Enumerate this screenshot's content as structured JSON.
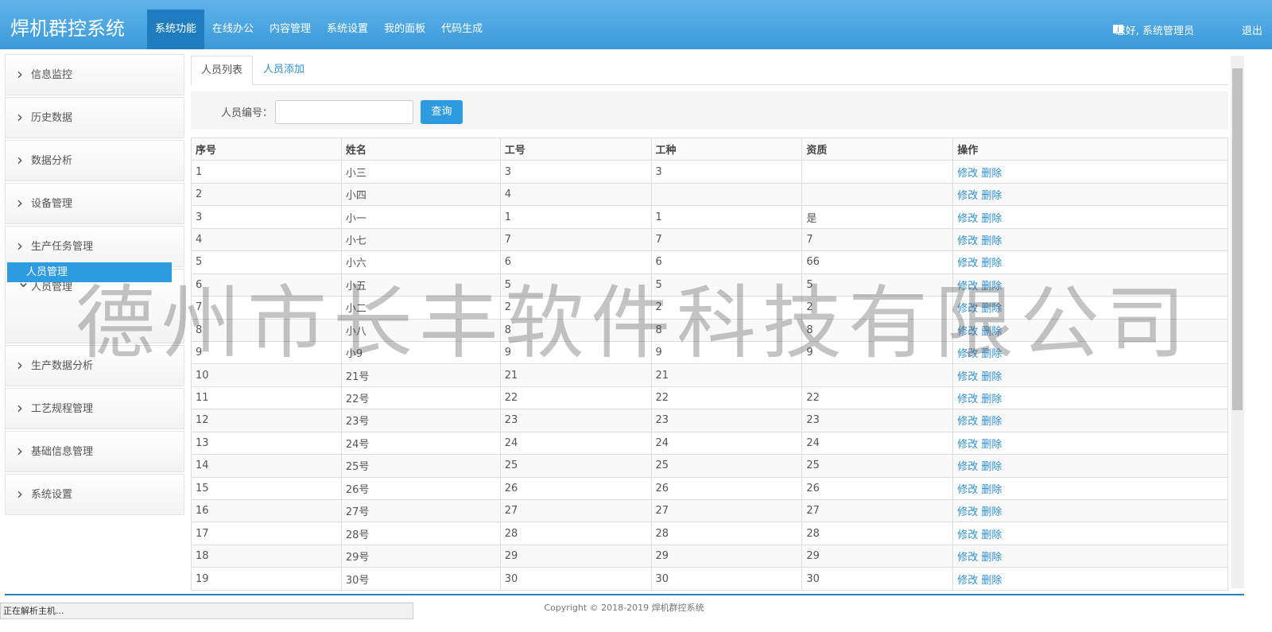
{
  "header": {
    "brand": "焊机群控系统",
    "nav": [
      "系统功能",
      "在线办公",
      "内容管理",
      "系统设置",
      "我的面板",
      "代码生成"
    ],
    "user": "您好, 系统管理员",
    "logout": "退出"
  },
  "sidebar": {
    "items": [
      "信息监控",
      "历史数据",
      "数据分析",
      "设备管理",
      "生产任务管理",
      "人员管理",
      "生产数据分析",
      "工艺规程管理",
      "基础信息管理",
      "系统设置"
    ],
    "submenu": "人员管理"
  },
  "tabs": [
    "人员列表",
    "人员添加"
  ],
  "search": {
    "label": "人员编号：",
    "button": "查询"
  },
  "table": {
    "columns": [
      "序号",
      "姓名",
      "工号",
      "工种",
      "资质",
      "操作"
    ],
    "actions": [
      "修改",
      "删除"
    ],
    "rows": [
      [
        "1",
        "小三",
        "3",
        "3",
        null
      ],
      [
        "2",
        "小四",
        "4",
        null,
        null
      ],
      [
        "3",
        "小一",
        "1",
        "1",
        "是"
      ],
      [
        "4",
        "小七",
        "7",
        "7",
        "7"
      ],
      [
        "5",
        "小六",
        "6",
        "6",
        "66"
      ],
      [
        "6",
        "小五",
        "5",
        "5",
        "5"
      ],
      [
        "7",
        "小二",
        "2",
        "2",
        "2"
      ],
      [
        "8",
        "小八",
        "8",
        "8",
        "8"
      ],
      [
        "9",
        "小9",
        "9",
        "9",
        "9"
      ],
      [
        "10",
        "21号",
        "21",
        "21",
        null
      ],
      [
        "11",
        "22号",
        "22",
        "22",
        "22"
      ],
      [
        "12",
        "23号",
        "23",
        "23",
        "23"
      ],
      [
        "13",
        "24号",
        "24",
        "24",
        "24"
      ],
      [
        "14",
        "25号",
        "25",
        "25",
        "25"
      ],
      [
        "15",
        "26号",
        "26",
        "26",
        "26"
      ],
      [
        "16",
        "27号",
        "27",
        "27",
        "27"
      ],
      [
        "17",
        "28号",
        "28",
        "28",
        "28"
      ],
      [
        "18",
        "29号",
        "29",
        "29",
        "29"
      ],
      [
        "19",
        "30号",
        "30",
        "30",
        "30"
      ]
    ]
  },
  "watermark": "德州市长丰软件科技有限公司",
  "footer": "Copyright © 2018-2019 焊机群控系统",
  "status": "正在解析主机..."
}
